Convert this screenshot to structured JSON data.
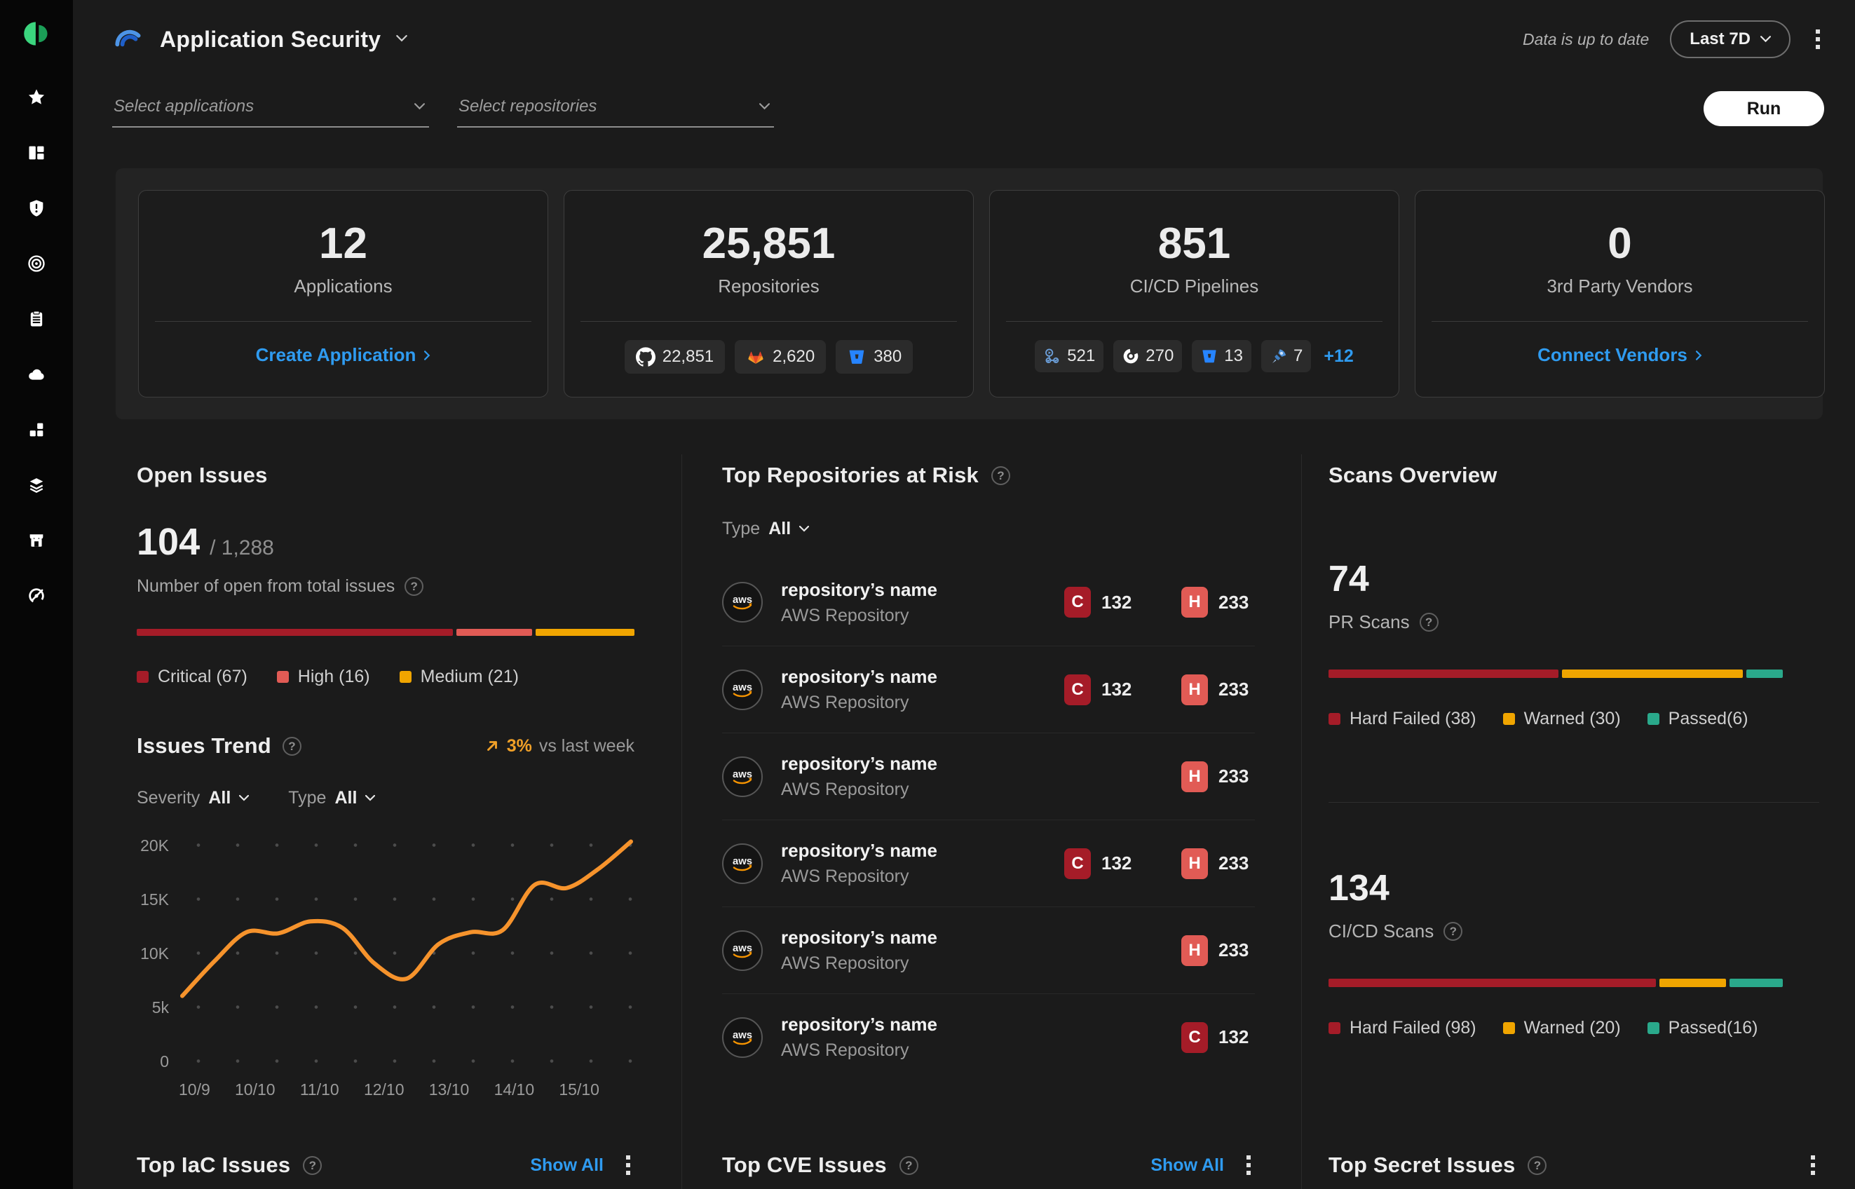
{
  "header": {
    "app_title": "Application Security",
    "status_text": "Data is up to date",
    "time_range": "Last 7D",
    "run_label": "Run"
  },
  "filters": {
    "applications_placeholder": "Select applications",
    "repositories_placeholder": "Select repositories"
  },
  "sidebar": {
    "icons": [
      "star",
      "panels",
      "shield-alert",
      "target",
      "clipboard",
      "cloud",
      "blocks",
      "layers",
      "store",
      "gauge"
    ]
  },
  "stat_cards": [
    {
      "value": "12",
      "label": "Applications",
      "action": "Create Application"
    },
    {
      "value": "25,851",
      "label": "Repositories",
      "breakdown": [
        {
          "icon": "github",
          "count": "22,851"
        },
        {
          "icon": "gitlab",
          "count": "2,620"
        },
        {
          "icon": "bitbucket",
          "count": "380"
        }
      ]
    },
    {
      "value": "851",
      "label": "CI/CD Pipelines",
      "breakdown": [
        {
          "icon": "github-actions",
          "count": "521"
        },
        {
          "icon": "circleci",
          "count": "270"
        },
        {
          "icon": "bitbucket",
          "count": "13"
        },
        {
          "icon": "azure-pipelines",
          "count": "7"
        }
      ],
      "more": "+12"
    },
    {
      "value": "0",
      "label": "3rd Party Vendors",
      "action": "Connect Vendors"
    }
  ],
  "open_issues": {
    "title": "Open Issues",
    "open": "104",
    "total": "/ 1,288",
    "subtitle": "Number of open from total issues",
    "severity": [
      {
        "label": "Critical (67)",
        "value": 67,
        "color": "#a51c28"
      },
      {
        "label": "High (16)",
        "value": 16,
        "color": "#e15b55"
      },
      {
        "label": "Medium (21)",
        "value": 21,
        "color": "#f0a500"
      }
    ]
  },
  "issues_trend": {
    "title": "Issues Trend",
    "delta": "3%",
    "delta_suffix": "vs last week",
    "severity_filter_label": "Severity",
    "severity_filter_value": "All",
    "type_filter_label": "Type",
    "type_filter_value": "All"
  },
  "chart_data": {
    "type": "line",
    "title": "Issues Trend",
    "x_ticks": [
      "10/9",
      "10/10",
      "11/10",
      "12/10",
      "13/10",
      "14/10",
      "15/10"
    ],
    "y_ticks": [
      "20K",
      "15K",
      "10K",
      "5k",
      "0"
    ],
    "ylim_k": [
      0,
      21
    ],
    "grid": "dotted",
    "series": [
      {
        "name": "Issues",
        "color": "#f6932c",
        "values_k": [
          6.0,
          9.2,
          11.9,
          11.8,
          12.9,
          12.3,
          9.0,
          7.6,
          10.8,
          11.9,
          12.1,
          16.3,
          16.0,
          17.8,
          20.3
        ]
      }
    ]
  },
  "top_repositories": {
    "title": "Top Repositories at Risk",
    "type_filter_label": "Type",
    "type_filter_value": "All",
    "rows": [
      {
        "name": "repository’s name",
        "type": "AWS Repository",
        "badges": [
          {
            "severity": "C",
            "count": "132"
          },
          {
            "severity": "H",
            "count": "233"
          }
        ]
      },
      {
        "name": "repository’s name",
        "type": "AWS Repository",
        "badges": [
          {
            "severity": "C",
            "count": "132"
          },
          {
            "severity": "H",
            "count": "233"
          }
        ]
      },
      {
        "name": "repository’s name",
        "type": "AWS Repository",
        "badges": [
          {
            "severity": "H",
            "count": "233"
          }
        ]
      },
      {
        "name": "repository’s name",
        "type": "AWS Repository",
        "badges": [
          {
            "severity": "C",
            "count": "132"
          },
          {
            "severity": "H",
            "count": "233"
          }
        ]
      },
      {
        "name": "repository’s name",
        "type": "AWS Repository",
        "badges": [
          {
            "severity": "H",
            "count": "233"
          }
        ]
      },
      {
        "name": "repository’s name",
        "type": "AWS Repository",
        "badges": [
          {
            "severity": "C",
            "count": "132"
          }
        ]
      }
    ]
  },
  "scans_overview": {
    "title": "Scans Overview",
    "pr": {
      "value": "74",
      "label": "PR Scans",
      "segments": [
        {
          "label": "Hard Failed (38)",
          "value": 38,
          "color": "#a51c28"
        },
        {
          "label": "Warned (30)",
          "value": 30,
          "color": "#f0a500"
        },
        {
          "label": "Passed(6)",
          "value": 6,
          "color": "#2aa98b"
        }
      ]
    },
    "cicd": {
      "value": "134",
      "label": "CI/CD Scans",
      "segments": [
        {
          "label": "Hard Failed (98)",
          "value": 98,
          "color": "#a51c28"
        },
        {
          "label": "Warned (20)",
          "value": 20,
          "color": "#f0a500"
        },
        {
          "label": "Passed(16)",
          "value": 16,
          "color": "#2aa98b"
        }
      ]
    }
  },
  "bottom_sections": [
    {
      "title": "Top IaC Issues",
      "show_all": "Show All"
    },
    {
      "title": "Top CVE Issues",
      "show_all": "Show All"
    },
    {
      "title": "Top Secret Issues"
    }
  ],
  "colors": {
    "accent_blue": "#2f9bf0",
    "critical": "#a51c28",
    "high": "#e15b55",
    "medium": "#f0a500",
    "passed": "#2aa98b",
    "trend_line": "#f6932c",
    "delta_orange": "#f0a028"
  }
}
